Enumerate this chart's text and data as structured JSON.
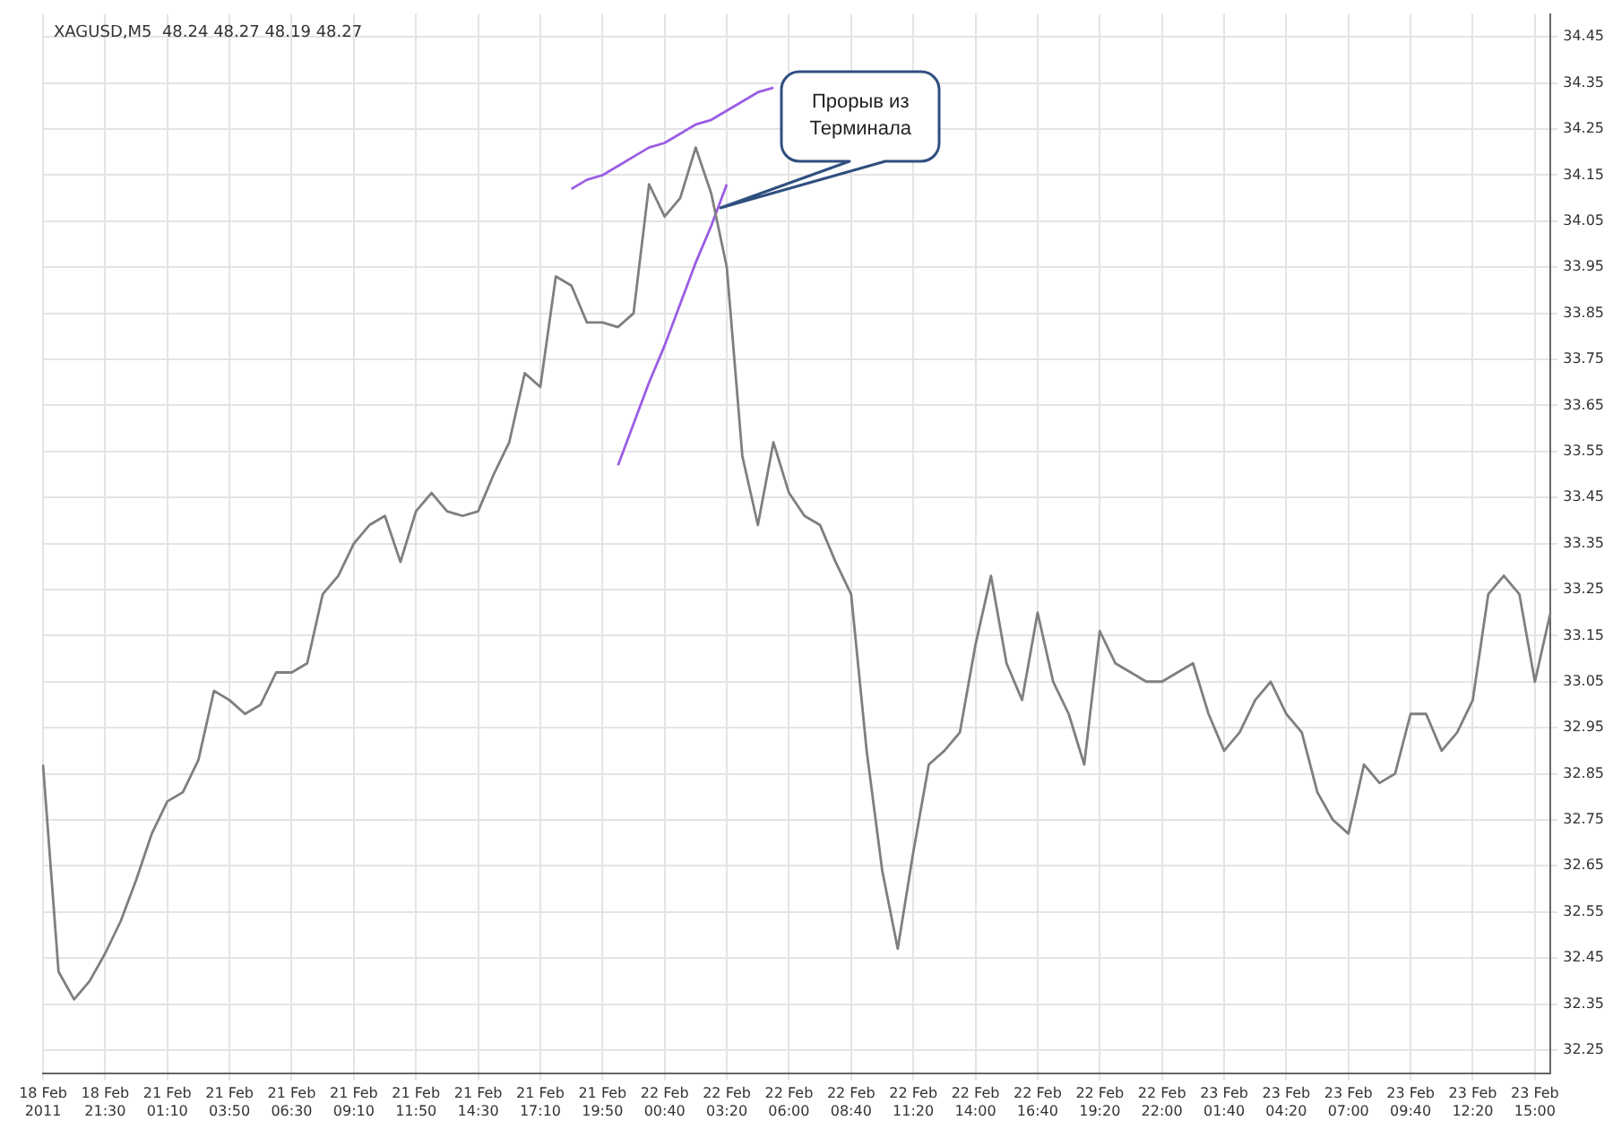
{
  "chart_data": {
    "type": "line",
    "title": "XAGUSD,M5  48.24 48.27 48.19 48.27",
    "categories": [
      "18 Feb 2011",
      null,
      null,
      null,
      "18 Feb 21:30",
      null,
      null,
      null,
      "21 Feb 01:10",
      null,
      null,
      null,
      "21 Feb 03:50",
      null,
      null,
      null,
      "21 Feb 06:30",
      null,
      null,
      null,
      "21 Feb 09:10",
      null,
      null,
      null,
      "21 Feb 11:50",
      null,
      null,
      null,
      "21 Feb 14:30",
      null,
      null,
      null,
      "21 Feb 17:10",
      null,
      null,
      null,
      "21 Feb 19:50",
      null,
      null,
      null,
      "22 Feb 00:40",
      null,
      null,
      null,
      "22 Feb 03:20",
      null,
      null,
      null,
      "22 Feb 06:00",
      null,
      null,
      null,
      "22 Feb 08:40",
      null,
      null,
      null,
      "22 Feb 11:20",
      null,
      null,
      null,
      "22 Feb 14:00",
      null,
      null,
      null,
      "22 Feb 16:40",
      null,
      null,
      null,
      "22 Feb 19:20",
      null,
      null,
      null,
      "22 Feb 22:00",
      null,
      null,
      null,
      "23 Feb 01:40",
      null,
      null,
      null,
      "23 Feb 04:20",
      null,
      null,
      null,
      "23 Feb 07:00",
      null,
      null,
      null,
      "23 Feb 09:40",
      null,
      null,
      null,
      "23 Feb 12:20",
      null,
      null,
      null,
      "23 Feb 15:00",
      null
    ],
    "series": [
      {
        "color": "#7f7f7f",
        "values": [
          32.87,
          32.42,
          32.36,
          32.4,
          32.46,
          32.53,
          32.62,
          32.72,
          32.79,
          32.81,
          32.88,
          33.03,
          33.01,
          32.98,
          33.0,
          33.07,
          33.07,
          33.09,
          33.24,
          33.28,
          33.35,
          33.39,
          33.41,
          33.31,
          33.42,
          33.46,
          33.42,
          33.41,
          33.42,
          33.5,
          33.57,
          33.72,
          33.69,
          33.93,
          33.91,
          33.83,
          33.83,
          33.82,
          33.85,
          34.13,
          34.06,
          34.1,
          34.21,
          34.11,
          33.95,
          33.54,
          33.39,
          33.57,
          33.46,
          33.41,
          33.39,
          33.31,
          33.24,
          32.9,
          32.64,
          32.47,
          32.68,
          32.87,
          32.9,
          32.94,
          33.13,
          33.28,
          33.09,
          33.01,
          33.2,
          33.05,
          32.98,
          32.87,
          33.16,
          33.09,
          33.07,
          33.05,
          33.05,
          33.07,
          33.09,
          32.98,
          32.9,
          32.94,
          33.01,
          33.05,
          32.98,
          32.94,
          32.81,
          32.75,
          32.72,
          32.87,
          32.83,
          32.85,
          32.98,
          32.98,
          32.9,
          32.94,
          33.01,
          33.24,
          33.28,
          33.24,
          33.05,
          33.2
        ]
      },
      {
        "type": "line",
        "color": "#9b5de5",
        "values": [
          null,
          null,
          null,
          null,
          null,
          null,
          null,
          null,
          null,
          null,
          null,
          null,
          null,
          null,
          null,
          null,
          null,
          null,
          null,
          null,
          null,
          null,
          null,
          null,
          null,
          null,
          null,
          null,
          null,
          null,
          null,
          null,
          null,
          null,
          34.12,
          34.14,
          34.15,
          34.17,
          34.19,
          34.21,
          34.22,
          34.24,
          34.26,
          34.27,
          34.29,
          34.31,
          34.33,
          34.34,
          null,
          null,
          null,
          null,
          null,
          null,
          null,
          null,
          null,
          null,
          null,
          null,
          null,
          null,
          null,
          null,
          null,
          null,
          null,
          null,
          null,
          null,
          null,
          null,
          null,
          null,
          null,
          null,
          null,
          null,
          null,
          null,
          null,
          null,
          null,
          null,
          null,
          null,
          null,
          null,
          null,
          null,
          null,
          null,
          null,
          null,
          null,
          null,
          null,
          null
        ]
      },
      {
        "type": "line",
        "color": "#9b5de5",
        "values": [
          null,
          null,
          null,
          null,
          null,
          null,
          null,
          null,
          null,
          null,
          null,
          null,
          null,
          null,
          null,
          null,
          null,
          null,
          null,
          null,
          null,
          null,
          null,
          null,
          null,
          null,
          null,
          null,
          null,
          null,
          null,
          null,
          null,
          null,
          null,
          null,
          null,
          33.52,
          33.61,
          33.7,
          33.78,
          33.87,
          33.96,
          34.04,
          34.13,
          null,
          null,
          null,
          null,
          null,
          null,
          null,
          null,
          null,
          null,
          null,
          null,
          null,
          null,
          null,
          null,
          null,
          null,
          null,
          null,
          null,
          null,
          null,
          null,
          null,
          null,
          null,
          null,
          null,
          null,
          null,
          null,
          null,
          null,
          null,
          null,
          null,
          null,
          null,
          null,
          null,
          null,
          null,
          null,
          null,
          null,
          null,
          null,
          null,
          null,
          null,
          null,
          null
        ]
      }
    ],
    "ylim": [
      32.2,
      34.5
    ],
    "yticks": [
      32.25,
      32.35,
      32.45,
      32.55,
      32.65,
      32.75,
      32.85,
      32.95,
      33.05,
      33.15,
      33.25,
      33.35,
      33.45,
      33.55,
      33.65,
      33.75,
      33.85,
      33.95,
      34.05,
      34.15,
      34.25,
      34.35,
      34.45
    ],
    "grid": true,
    "annotations": [
      "Прорыв из Терминала"
    ]
  }
}
